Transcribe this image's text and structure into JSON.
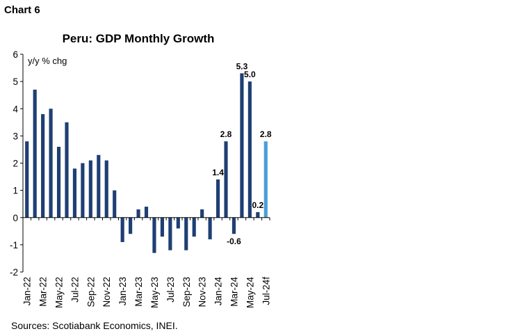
{
  "chart_label": "Chart 6",
  "source": "Sources: Scotiabank Economics, INEI.",
  "chart_data": {
    "type": "bar",
    "title": "Peru: GDP Monthly Growth",
    "ylabel": "y/y % chg",
    "xlabel": "",
    "ylim": [
      -2,
      6
    ],
    "yticks": [
      6,
      5,
      4,
      3,
      2,
      1,
      0,
      -1,
      -2
    ],
    "categories": [
      "Jan-22",
      "Feb-22",
      "Mar-22",
      "Apr-22",
      "May-22",
      "Jun-22",
      "Jul-22",
      "Aug-22",
      "Sep-22",
      "Oct-22",
      "Nov-22",
      "Dec-22",
      "Jan-23",
      "Feb-23",
      "Mar-23",
      "Apr-23",
      "May-23",
      "Jun-23",
      "Jul-23",
      "Aug-23",
      "Sep-23",
      "Oct-23",
      "Nov-23",
      "Dec-23",
      "Jan-24",
      "Feb-24",
      "Mar-24",
      "Apr-24",
      "May-24",
      "Jun-24",
      "Jul-24f"
    ],
    "xtick_labels": [
      "Jan-22",
      "Mar-22",
      "May-22",
      "Jul-22",
      "Sep-22",
      "Nov-22",
      "Jan-23",
      "Mar-23",
      "May-23",
      "Jul-23",
      "Sep-23",
      "Nov-23",
      "Jan-24",
      "Mar-24",
      "May-24",
      "Jul-24f"
    ],
    "values": [
      2.8,
      4.7,
      3.8,
      4.0,
      2.6,
      3.5,
      1.8,
      2.0,
      2.1,
      2.3,
      2.1,
      1.0,
      -0.9,
      -0.6,
      0.3,
      0.4,
      -1.3,
      -0.7,
      -1.2,
      -0.4,
      -1.2,
      -0.7,
      0.3,
      -0.8,
      1.4,
      2.8,
      -0.6,
      5.3,
      5.0,
      0.2,
      2.8
    ],
    "data_labels": [
      {
        "index": 24,
        "text": "1.4"
      },
      {
        "index": 25,
        "text": "2.8"
      },
      {
        "index": 26,
        "text": "-0.6"
      },
      {
        "index": 27,
        "text": "5.3"
      },
      {
        "index": 28,
        "text": "5.0"
      },
      {
        "index": 29,
        "text": "0.2"
      },
      {
        "index": 30,
        "text": "2.8"
      }
    ],
    "colors": {
      "actual": "#1f3f73",
      "forecast": "#4a9fd8"
    },
    "forecast_index": 30
  }
}
